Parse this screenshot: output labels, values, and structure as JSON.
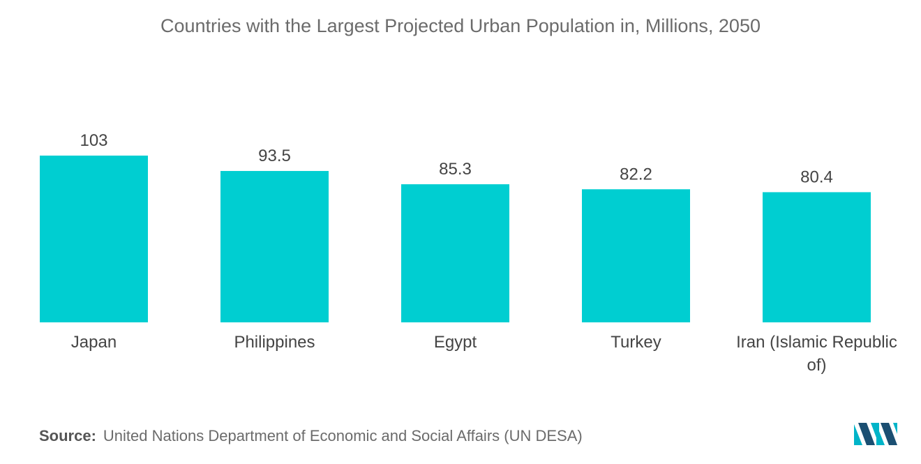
{
  "chart_data": {
    "type": "bar",
    "title": "Countries with the Largest Projected Urban Population in, Millions, 2050",
    "categories": [
      "Japan",
      "Philippines",
      "Egypt",
      "Turkey",
      "Iran (Islamic Republic of)"
    ],
    "category_lines": [
      [
        "Japan"
      ],
      [
        "Philippines"
      ],
      [
        "Egypt"
      ],
      [
        "Turkey"
      ],
      [
        "Iran (Islamic Republic",
        "of)"
      ]
    ],
    "values": [
      103,
      93.5,
      85.3,
      82.2,
      80.4
    ],
    "value_labels": [
      "103",
      "93.5",
      "85.3",
      "82.2",
      "80.4"
    ],
    "xlabel": "",
    "ylabel": "",
    "ylim": [
      0,
      103
    ],
    "grid": false,
    "bar_color": "#00CED1"
  },
  "source": {
    "label": "Source:",
    "text": "United Nations Department of Economic and Social Affairs (UN DESA)"
  },
  "colors": {
    "title": "#6b6b6b",
    "logo_dark": "#1b4f72",
    "logo_light": "#00b4c8"
  },
  "logo": {
    "icon": "mordor-logo-icon"
  }
}
